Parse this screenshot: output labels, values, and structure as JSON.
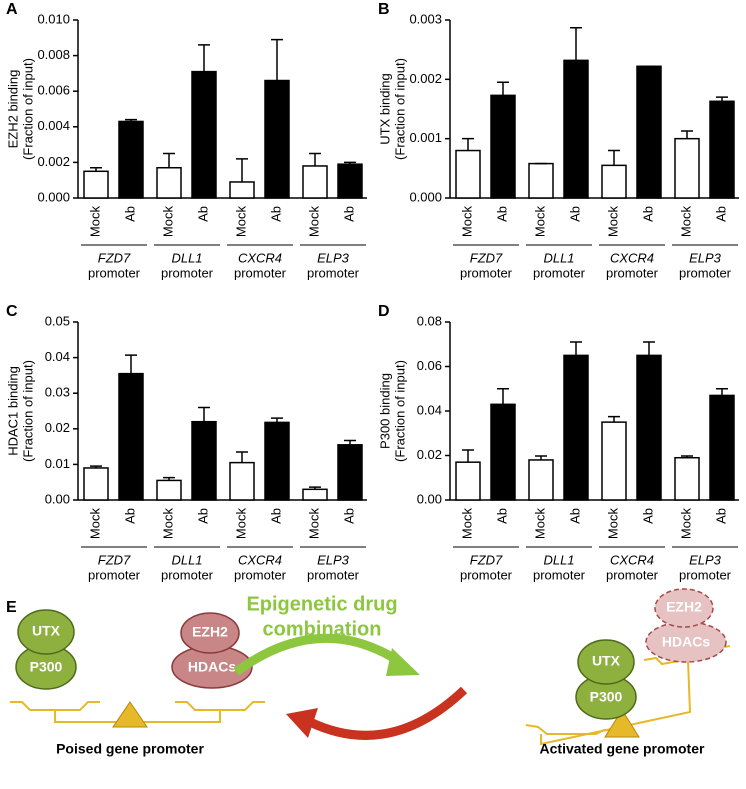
{
  "chart_data": [
    {
      "type": "bar",
      "panel": "A",
      "ylabel": [
        "EZH2 binding",
        "(Fraction of input)"
      ],
      "groups": [
        "FZD7",
        "DLL1",
        "CXCR4",
        "ELP3"
      ],
      "group_suffix": "promoter",
      "ylim": [
        0,
        0.01
      ],
      "yticks": [
        {
          "value": 0,
          "label": "0.000"
        },
        {
          "value": 0.002,
          "label": "0.002"
        },
        {
          "value": 0.004,
          "label": "0.004"
        },
        {
          "value": 0.006,
          "label": "0.006"
        },
        {
          "value": 0.008,
          "label": "0.008"
        },
        {
          "value": 0.01,
          "label": "0.010"
        }
      ],
      "series": [
        {
          "name": "Mock",
          "color": "#ffffff",
          "values": [
            0.0015,
            0.0017,
            0.0009,
            0.0018
          ],
          "errors": [
            0.0002,
            0.0008,
            0.0013,
            0.0007
          ]
        },
        {
          "name": "Ab",
          "color": "#000000",
          "values": [
            0.0043,
            0.0071,
            0.0066,
            0.0019
          ],
          "errors": [
            0.0001,
            0.0015,
            0.0023,
            0.0001
          ]
        }
      ]
    },
    {
      "type": "bar",
      "panel": "B",
      "ylabel": [
        "UTX binding",
        "(Fraction of input)"
      ],
      "groups": [
        "FZD7",
        "DLL1",
        "CXCR4",
        "ELP3"
      ],
      "group_suffix": "promoter",
      "ylim": [
        0,
        0.003
      ],
      "yticks": [
        {
          "value": 0,
          "label": "0.000"
        },
        {
          "value": 0.001,
          "label": "0.001"
        },
        {
          "value": 0.002,
          "label": "0.002"
        },
        {
          "value": 0.003,
          "label": "0.003"
        }
      ],
      "series": [
        {
          "name": "Mock",
          "color": "#ffffff",
          "values": [
            0.0008,
            0.00058,
            0.00055,
            0.001
          ],
          "errors": [
            0.0002,
            0,
            0.00025,
            0.00013
          ]
        },
        {
          "name": "Ab",
          "color": "#000000",
          "values": [
            0.00173,
            0.00232,
            0.00222,
            0.00163
          ],
          "errors": [
            0.00022,
            0.00055,
            0,
            7e-05
          ]
        }
      ]
    },
    {
      "type": "bar",
      "panel": "C",
      "ylabel": [
        "HDAC1 binding",
        "(Fraction of input)"
      ],
      "groups": [
        "FZD7",
        "DLL1",
        "CXCR4",
        "ELP3"
      ],
      "group_suffix": "promoter",
      "ylim": [
        0,
        0.05
      ],
      "yticks": [
        {
          "value": 0,
          "label": "0.00"
        },
        {
          "value": 0.01,
          "label": "0.01"
        },
        {
          "value": 0.02,
          "label": "0.02"
        },
        {
          "value": 0.03,
          "label": "0.03"
        },
        {
          "value": 0.04,
          "label": "0.04"
        },
        {
          "value": 0.05,
          "label": "0.05"
        }
      ],
      "series": [
        {
          "name": "Mock",
          "color": "#ffffff",
          "values": [
            0.009,
            0.0055,
            0.0105,
            0.003
          ],
          "errors": [
            0.0005,
            0.0008,
            0.003,
            0.0006
          ]
        },
        {
          "name": "Ab",
          "color": "#000000",
          "values": [
            0.0355,
            0.022,
            0.0218,
            0.0155
          ],
          "errors": [
            0.0052,
            0.004,
            0.0012,
            0.0012
          ]
        }
      ]
    },
    {
      "type": "bar",
      "panel": "D",
      "ylabel": [
        "P300 binding",
        "(Fraction of input)"
      ],
      "groups": [
        "FZD7",
        "DLL1",
        "CXCR4",
        "ELP3"
      ],
      "group_suffix": "promoter",
      "ylim": [
        0,
        0.08
      ],
      "yticks": [
        {
          "value": 0,
          "label": "0.00"
        },
        {
          "value": 0.02,
          "label": "0.02"
        },
        {
          "value": 0.04,
          "label": "0.04"
        },
        {
          "value": 0.06,
          "label": "0.06"
        },
        {
          "value": 0.08,
          "label": "0.08"
        }
      ],
      "series": [
        {
          "name": "Mock",
          "color": "#ffffff",
          "values": [
            0.017,
            0.018,
            0.035,
            0.019
          ],
          "errors": [
            0.0055,
            0.0018,
            0.0025,
            0.0008
          ]
        },
        {
          "name": "Ab",
          "color": "#000000",
          "values": [
            0.043,
            0.065,
            0.065,
            0.047
          ],
          "errors": [
            0.007,
            0.006,
            0.006,
            0.003
          ]
        }
      ]
    }
  ],
  "diagram": {
    "panel": "E",
    "left": {
      "utx": "UTX",
      "p300": "P300",
      "ezh2": "EZH2",
      "hdacs": "HDACs",
      "label": "Poised gene promoter"
    },
    "arrow_label": [
      "Epigenetic drug",
      "combination"
    ],
    "right": {
      "utx": "UTX",
      "p300": "P300",
      "ezh2": "EZH2",
      "hdacs": "HDACs",
      "label": "Activated gene promoter"
    }
  }
}
